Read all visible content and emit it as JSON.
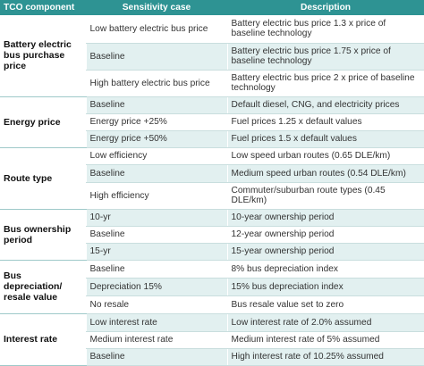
{
  "headers": [
    "TCO component",
    "Sensitivity case",
    "Description"
  ],
  "groups": [
    {
      "component": "Battery electric bus purchase price",
      "rows": [
        {
          "case": "Low battery electric bus price",
          "desc": "Battery electric bus price 1.3 x price of baseline technology"
        },
        {
          "case": "Baseline",
          "desc": "Battery electric bus price 1.75 x price of baseline technology"
        },
        {
          "case": "High battery electric bus price",
          "desc": "Battery electric bus price 2 x price of baseline technology"
        }
      ]
    },
    {
      "component": "Energy price",
      "rows": [
        {
          "case": "Baseline",
          "desc": "Default diesel, CNG, and electricity prices"
        },
        {
          "case": "Energy price +25%",
          "desc": "Fuel prices 1.25 x default values"
        },
        {
          "case": "Energy price +50%",
          "desc": "Fuel prices 1.5 x default values"
        }
      ]
    },
    {
      "component": "Route type",
      "rows": [
        {
          "case": "Low efficiency",
          "desc": "Low speed urban routes (0.65 DLE/km)"
        },
        {
          "case": "Baseline",
          "desc": "Medium speed urban routes (0.54 DLE/km)"
        },
        {
          "case": "High efficiency",
          "desc": "Commuter/suburban route types (0.45 DLE/km)"
        }
      ]
    },
    {
      "component": "Bus ownership period",
      "rows": [
        {
          "case": "10-yr",
          "desc": "10-year ownership period"
        },
        {
          "case": "Baseline",
          "desc": "12-year ownership period"
        },
        {
          "case": "15-yr",
          "desc": "15-year ownership period"
        }
      ]
    },
    {
      "component": "Bus depreciation/ resale value",
      "rows": [
        {
          "case": "Baseline",
          "desc": "8% bus depreciation index"
        },
        {
          "case": "Depreciation 15%",
          "desc": "15% bus depreciation index"
        },
        {
          "case": "No resale",
          "desc": "Bus resale value set to zero"
        }
      ]
    },
    {
      "component": "Interest rate",
      "rows": [
        {
          "case": "Low interest rate",
          "desc": "Low interest rate of 2.0% assumed"
        },
        {
          "case": "Medium interest rate",
          "desc": "Medium interest rate of 5% assumed"
        },
        {
          "case": "Baseline",
          "desc": "High interest rate of 10.25% assumed"
        }
      ]
    }
  ]
}
